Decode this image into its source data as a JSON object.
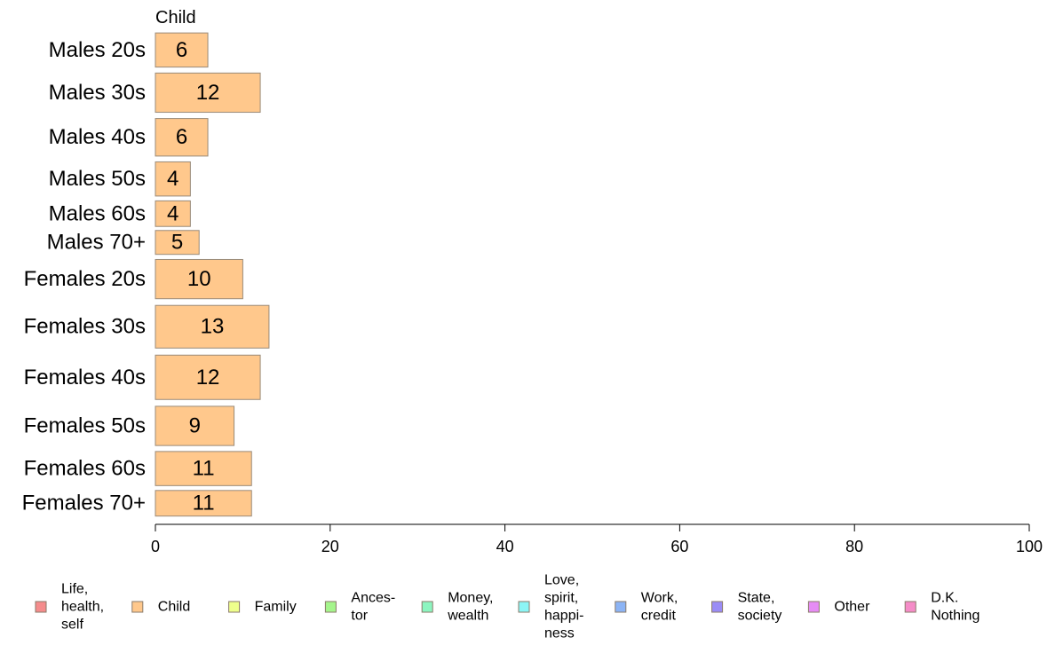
{
  "chart_data": {
    "type": "bar",
    "orientation": "horizontal",
    "title": "",
    "xlabel": "",
    "ylabel": "",
    "xlim": [
      0,
      100
    ],
    "x_ticks": [
      0,
      20,
      40,
      60,
      80,
      100
    ],
    "grid": false,
    "legend_position": "bottom",
    "series_label": "Child",
    "categories": [
      "Males 20s",
      "Males 30s",
      "Males 40s",
      "Males 50s",
      "Males 60s",
      "Males 70+",
      "Females 20s",
      "Females 30s",
      "Females 40s",
      "Females 50s",
      "Females 60s",
      "Females 70+"
    ],
    "values": [
      6,
      12,
      6,
      4,
      4,
      5,
      10,
      13,
      12,
      9,
      11,
      11
    ],
    "row_weights": [
      1.0,
      1.15,
      1.1,
      1.0,
      0.75,
      0.7,
      1.15,
      1.25,
      1.3,
      1.15,
      1.0,
      0.75
    ],
    "bar_color": "#ffc88c",
    "bar_edge_color": "#9a8a78",
    "legend": [
      {
        "label": [
          "Life,",
          "health,",
          "self"
        ],
        "color": "#f58c8c"
      },
      {
        "label": [
          "Child"
        ],
        "color": "#ffc88c"
      },
      {
        "label": [
          "Family"
        ],
        "color": "#eeff8c"
      },
      {
        "label": [
          "Ances-",
          "tor"
        ],
        "color": "#a5f58c"
      },
      {
        "label": [
          "Money,",
          "wealth"
        ],
        "color": "#8cf5c0"
      },
      {
        "label": [
          "Love,",
          "spirit,",
          "happi-",
          "ness"
        ],
        "color": "#8cf5f5"
      },
      {
        "label": [
          "Work,",
          "credit"
        ],
        "color": "#8cb4f5"
      },
      {
        "label": [
          "State,",
          "society"
        ],
        "color": "#9a8cf5"
      },
      {
        "label": [
          "Other"
        ],
        "color": "#e68cf5"
      },
      {
        "label": [
          "D.K.",
          "Nothing"
        ],
        "color": "#f58cc8"
      }
    ]
  }
}
